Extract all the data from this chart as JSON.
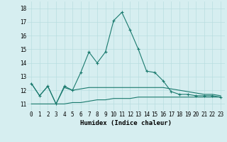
{
  "title": "",
  "xlabel": "Humidex (Indice chaleur)",
  "ylabel": "",
  "background_color": "#d6eef0",
  "line_color": "#1a7a6e",
  "grid_color": "#b8dde0",
  "x_values": [
    0,
    1,
    2,
    3,
    4,
    5,
    6,
    7,
    8,
    9,
    10,
    11,
    12,
    13,
    14,
    15,
    16,
    17,
    18,
    19,
    20,
    21,
    22,
    23
  ],
  "series1": [
    12.5,
    11.6,
    12.3,
    11.0,
    12.3,
    12.0,
    13.3,
    14.8,
    14.0,
    14.8,
    17.1,
    17.7,
    16.4,
    15.0,
    13.4,
    13.3,
    12.7,
    11.9,
    11.7,
    11.7,
    11.6,
    11.6,
    11.6,
    11.5
  ],
  "series2": [
    12.5,
    11.6,
    12.3,
    11.0,
    12.2,
    12.0,
    12.1,
    12.2,
    12.2,
    12.2,
    12.2,
    12.2,
    12.2,
    12.2,
    12.2,
    12.2,
    12.2,
    12.1,
    12.0,
    11.9,
    11.8,
    11.7,
    11.7,
    11.6
  ],
  "series3": [
    11.0,
    11.0,
    11.0,
    11.0,
    11.0,
    11.1,
    11.1,
    11.2,
    11.3,
    11.3,
    11.4,
    11.4,
    11.4,
    11.5,
    11.5,
    11.5,
    11.5,
    11.5,
    11.5,
    11.5,
    11.5,
    11.5,
    11.5,
    11.5
  ],
  "ylim": [
    10.5,
    18.5
  ],
  "yticks": [
    11,
    12,
    13,
    14,
    15,
    16,
    17,
    18
  ],
  "xticks": [
    0,
    1,
    2,
    3,
    4,
    5,
    6,
    7,
    8,
    9,
    10,
    11,
    12,
    13,
    14,
    15,
    16,
    17,
    18,
    19,
    20,
    21,
    22,
    23
  ],
  "tick_fontsize": 5.5,
  "xlabel_fontsize": 6.5
}
